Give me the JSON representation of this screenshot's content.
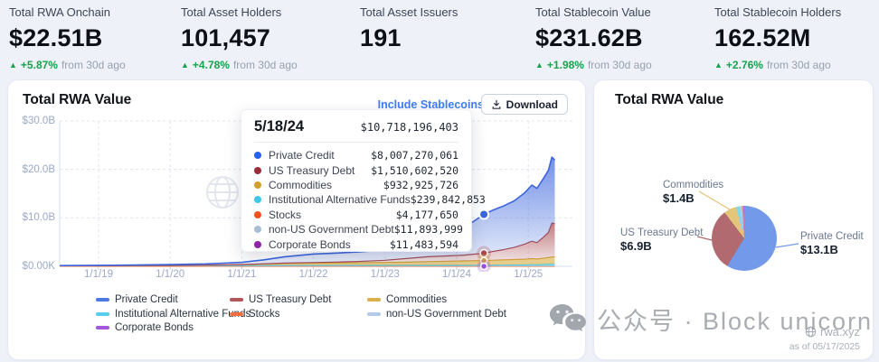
{
  "stats": [
    {
      "label": "Total RWA Onchain",
      "value": "$22.51B",
      "delta": "+5.87%",
      "delta_suffix": "from 30d ago"
    },
    {
      "label": "Total Asset Holders",
      "value": "101,457",
      "delta": "+4.78%",
      "delta_suffix": "from 30d ago"
    },
    {
      "label": "Total Asset Issuers",
      "value": "191",
      "delta": "",
      "delta_suffix": ""
    },
    {
      "label": "Total Stablecoin Value",
      "value": "$231.62B",
      "delta": "+1.98%",
      "delta_suffix": "from 30d ago"
    },
    {
      "label": "Total Stablecoin Holders",
      "value": "162.52M",
      "delta": "+2.76%",
      "delta_suffix": "from 30d ago"
    }
  ],
  "colors": {
    "positive_green": "#17a34a",
    "link_blue": "#3f7df6",
    "axis_label": "#9ba8c9",
    "grid": "#e0e4ee"
  },
  "left_card": {
    "title": "Total RWA Value",
    "include_stablecoins_label": "Include Stablecoins",
    "download_label": "Download"
  },
  "tooltip": {
    "date": "5/18/24",
    "total": "$10,718,196,403",
    "rows": [
      {
        "label": "Private Credit",
        "value": "$8,007,270,061",
        "color": "#2563eb"
      },
      {
        "label": "US Treasury Debt",
        "value": "$1,510,602,520",
        "color": "#9a2e36"
      },
      {
        "label": "Commodities",
        "value": "$932,925,726",
        "color": "#d19f2a"
      },
      {
        "label": "Institutional Alternative Funds",
        "value": "$239,842,853",
        "color": "#3ec7e8"
      },
      {
        "label": "Stocks",
        "value": "$4,177,650",
        "color": "#f4511e"
      },
      {
        "label": "non-US Government Debt",
        "value": "$11,893,999",
        "color": "#a9bfd8"
      },
      {
        "label": "Corporate Bonds",
        "value": "$11,483,594",
        "color": "#8e24aa"
      }
    ]
  },
  "chart_data": {
    "type": "area",
    "title": "Total RWA Value",
    "unit": "USD billions",
    "ylim": [
      0,
      30
    ],
    "yticks": [
      "$30.0B",
      "$20.0B",
      "$10.0B",
      "$0.00K"
    ],
    "ygrid_values": [
      0,
      10,
      20,
      30
    ],
    "xticks": [
      "1/1/19",
      "1/1/20",
      "1/1/21",
      "1/1/22",
      "1/1/23",
      "1/1/24",
      "1/1/25"
    ],
    "x": [
      2018.46,
      2019.0,
      2019.5,
      2020.0,
      2020.5,
      2021.0,
      2021.3,
      2021.6,
      2022.0,
      2022.3,
      2022.6,
      2023.0,
      2023.3,
      2023.6,
      2023.9,
      2024.1,
      2024.38,
      2024.5,
      2024.65,
      2024.8,
      2024.95,
      2025.05,
      2025.12,
      2025.2,
      2025.28,
      2025.33,
      2025.37
    ],
    "hover_index": 16,
    "hover_date": "5/18/24",
    "stack_order": [
      "Corporate Bonds",
      "non-US Government Debt",
      "Stocks",
      "Institutional Alternative Funds",
      "Commodities",
      "US Treasury Debt",
      "Private Credit"
    ],
    "series": [
      {
        "name": "Private Credit",
        "color": "#3b66dd",
        "gradient": true,
        "values": [
          0.05,
          0.08,
          0.12,
          0.18,
          0.25,
          0.45,
          0.8,
          1.3,
          1.75,
          1.85,
          1.95,
          2.1,
          2.4,
          2.9,
          4.2,
          5.6,
          8.01,
          8.5,
          9.0,
          9.6,
          10.6,
          11.6,
          11.2,
          12.0,
          12.8,
          13.6,
          13.1
        ]
      },
      {
        "name": "US Treasury Debt",
        "color": "#a84a50",
        "gradient": true,
        "values": [
          0,
          0,
          0,
          0,
          0,
          0.02,
          0.05,
          0.08,
          0.12,
          0.18,
          0.25,
          0.45,
          0.75,
          1.0,
          1.1,
          1.2,
          1.51,
          1.8,
          2.1,
          2.5,
          3.1,
          3.6,
          3.4,
          4.2,
          5.2,
          7.0,
          6.9
        ]
      },
      {
        "name": "Commodities",
        "color": "#d4a43c",
        "fill": "rgba(228,197,121,0.85)",
        "values": [
          0,
          0,
          0,
          0,
          0.05,
          0.15,
          0.25,
          0.35,
          0.42,
          0.45,
          0.48,
          0.55,
          0.6,
          0.7,
          0.8,
          0.85,
          0.93,
          0.97,
          1.0,
          1.05,
          1.1,
          1.15,
          1.1,
          1.2,
          1.3,
          1.4,
          1.4
        ]
      },
      {
        "name": "Institutional Alternative Funds",
        "color": "#3fc4e6",
        "fill": "rgba(127,216,239,0.85)",
        "values": [
          0.08,
          0.1,
          0.12,
          0.15,
          0.17,
          0.18,
          0.2,
          0.21,
          0.22,
          0.22,
          0.23,
          0.23,
          0.23,
          0.24,
          0.24,
          0.24,
          0.24,
          0.26,
          0.3,
          0.32,
          0.35,
          0.4,
          0.36,
          0.42,
          0.46,
          0.5,
          0.5
        ]
      },
      {
        "name": "Stocks",
        "color": "#f2703d",
        "fill": "rgba(245,142,111,0.85)",
        "values": 0.004
      },
      {
        "name": "non-US Government Debt",
        "color": "#b3c9e6",
        "fill": "rgba(184,205,234,0.9)",
        "values": 0.012
      },
      {
        "name": "Corporate Bonds",
        "color": "#9b4fd8",
        "fill": "rgba(168,106,224,0.8)",
        "values": 0.011
      }
    ],
    "hover_markers": [
      "Private Credit",
      "US Treasury Debt",
      "Commodities",
      "Corporate Bonds"
    ]
  },
  "legend_columns": [
    [
      {
        "name": "Private Credit",
        "color": "#4f79e2"
      },
      {
        "name": "Institutional Alternative Funds",
        "color": "#55cdec"
      },
      {
        "name": "Corporate Bonds",
        "color": "#a258de"
      }
    ],
    [
      {
        "name": "US Treasury Debt",
        "color": "#b0575c"
      },
      {
        "name": "Stocks",
        "color": "#f2703d"
      }
    ],
    [
      {
        "name": "Commodities",
        "color": "#d9b04c"
      },
      {
        "name": "non-US Government Debt",
        "color": "#b3c9e6"
      }
    ]
  ],
  "right_card": {
    "title": "Total RWA Value",
    "pie": {
      "type": "pie",
      "slices": [
        {
          "name": "Private Credit",
          "value": 13.1,
          "label": "$13.1B",
          "color": "#7399ea"
        },
        {
          "name": "US Treasury Debt",
          "value": 6.9,
          "label": "$6.9B",
          "color": "#b06a70"
        },
        {
          "name": "Commodities",
          "value": 1.4,
          "label": "$1.4B",
          "color": "#e4c579"
        },
        {
          "name": "Institutional Alternative Funds",
          "value": 0.45,
          "label": "",
          "color": "#7fd8ef"
        },
        {
          "name": "non-US Government Debt",
          "value": 0.18,
          "label": "",
          "color": "#b8cdea"
        },
        {
          "name": "Stocks",
          "value": 0.18,
          "label": "",
          "color": "#f58e6f"
        },
        {
          "name": "Corporate Bonds",
          "value": 0.1,
          "label": "",
          "color": "#a86ae0"
        }
      ]
    },
    "callouts": [
      {
        "name": "Commodities",
        "value": "$1.4B"
      },
      {
        "name": "US Treasury Debt",
        "value": "$6.9B"
      },
      {
        "name": "Private Credit",
        "value": "$13.1B"
      }
    ],
    "brand": "rwa.xyz",
    "as_of": "as of 05/17/2025"
  },
  "watermark": {
    "text": "公众号 · Block unicorn"
  }
}
